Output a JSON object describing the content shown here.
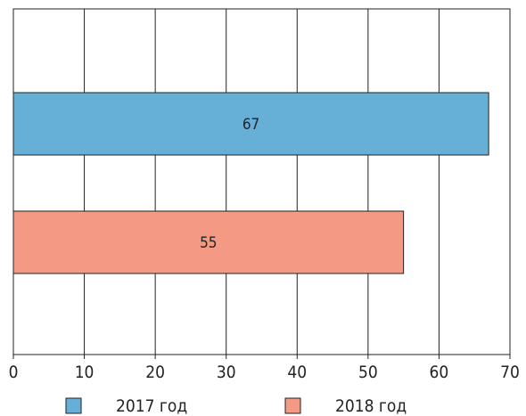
{
  "chart_data": {
    "type": "bar",
    "orientation": "horizontal",
    "title": "",
    "xlabel": "",
    "ylabel": "",
    "xlim": [
      0,
      70
    ],
    "x_ticks": [
      0,
      10,
      20,
      30,
      40,
      50,
      60,
      70
    ],
    "grid": true,
    "legend_position": "bottom",
    "series": [
      {
        "name": "2017 год",
        "value": 67,
        "label": "67",
        "color": "#66b0d8"
      },
      {
        "name": "2018 год",
        "value": 55,
        "label": "55",
        "color": "#f49a84"
      }
    ]
  }
}
